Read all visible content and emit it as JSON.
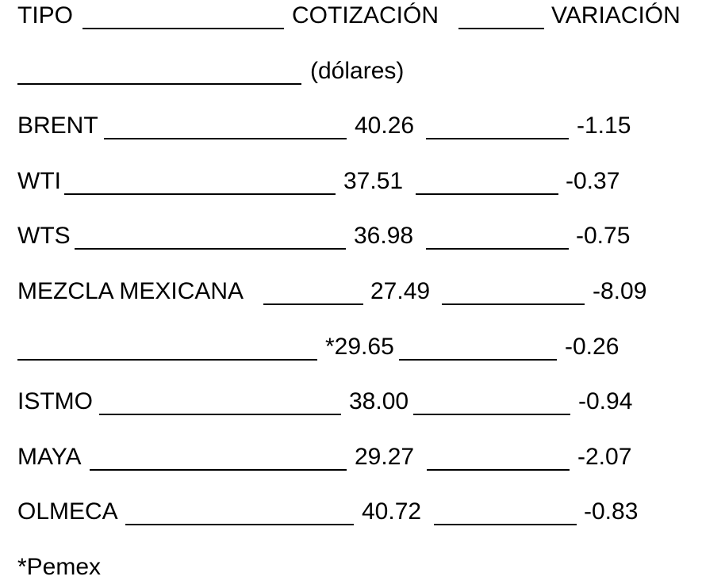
{
  "header": {
    "col_type": "TIPO",
    "col_quote": "COTIZACIÓN",
    "col_change": "VARIACIÓN",
    "unit": "(dólares)"
  },
  "rows": [
    {
      "type": "BRENT",
      "quote": "40.26",
      "change": "-1.15"
    },
    {
      "type": "WTI",
      "quote": "37.51",
      "change": "-0.37"
    },
    {
      "type": "WTS",
      "quote": "36.98",
      "change": "-0.75"
    },
    {
      "type": "MEZCLA MEXICANA",
      "quote": "27.49",
      "change": "-8.09"
    },
    {
      "type": "",
      "quote": "*29.65",
      "change": "-0.26"
    },
    {
      "type": "ISTMO",
      "quote": "38.00",
      "change": "-0.94"
    },
    {
      "type": "MAYA",
      "quote": "29.27",
      "change": "-2.07"
    },
    {
      "type": "OLMECA",
      "quote": "40.72",
      "change": "-0.83"
    }
  ],
  "footnote": "*Pemex"
}
